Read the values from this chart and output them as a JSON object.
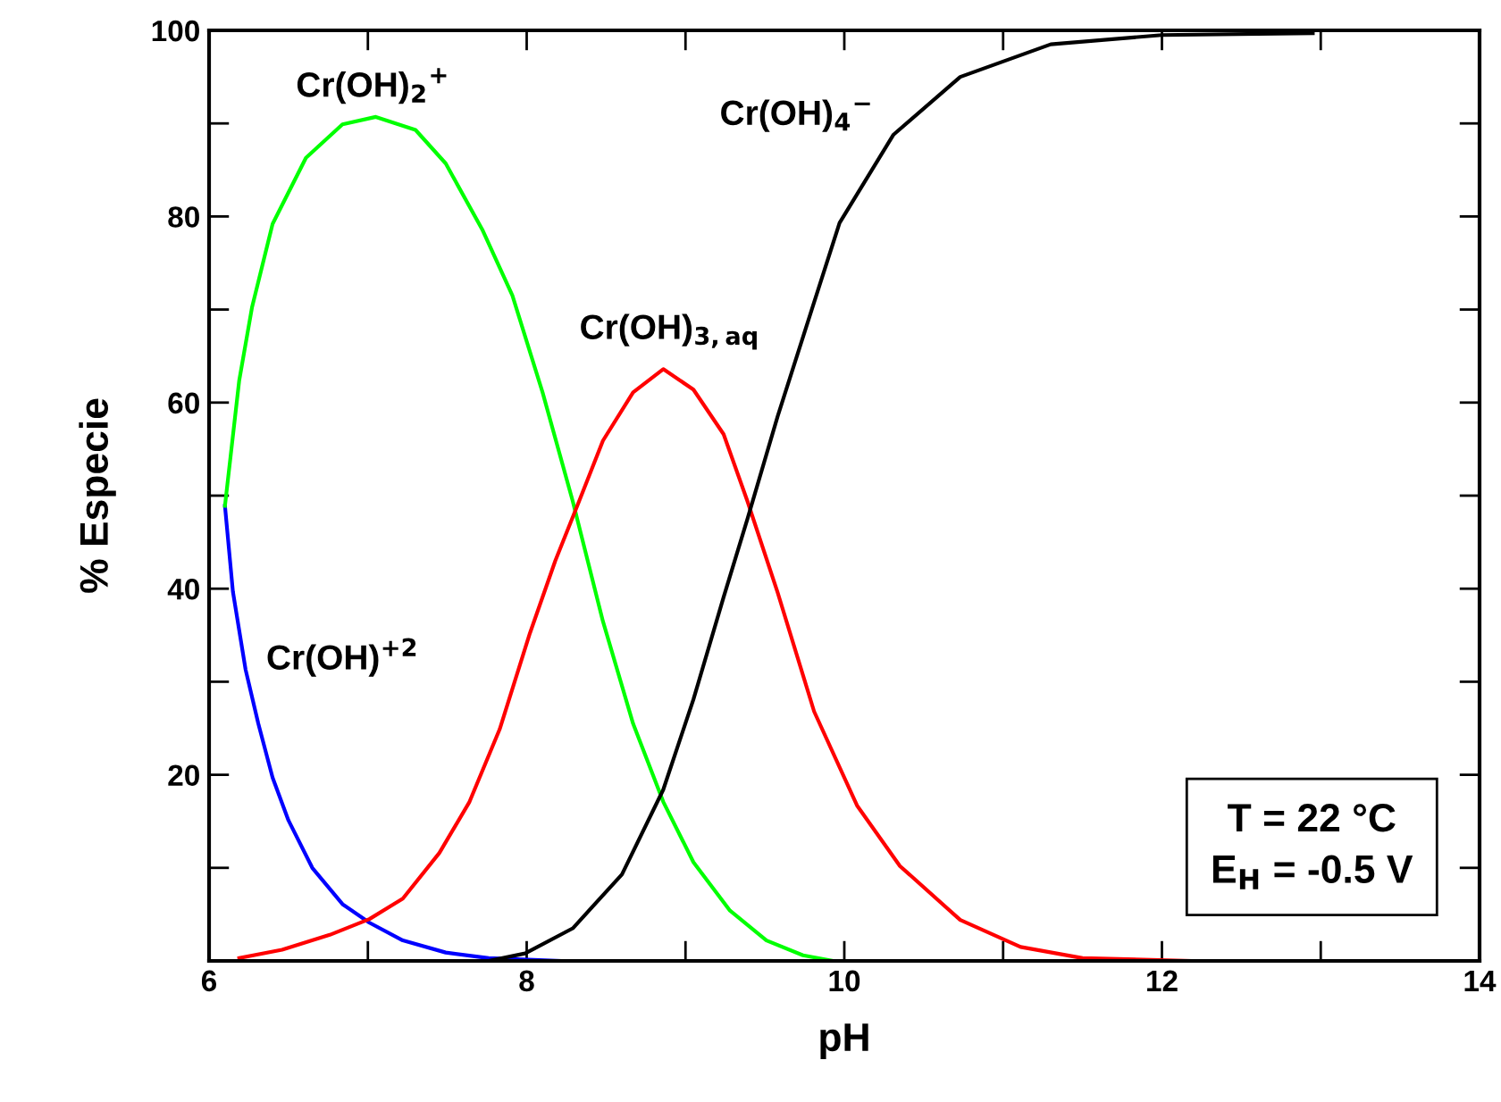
{
  "chart_data": {
    "type": "line",
    "xlabel": "pH",
    "ylabel": "% Especie",
    "xlim": [
      6,
      14
    ],
    "xticks": [
      6,
      {
        "value": 7,
        "label": null
      },
      8,
      {
        "value": 9,
        "label": null
      },
      10,
      {
        "value": 11,
        "label": null
      },
      12,
      {
        "value": 13,
        "label": null
      },
      14
    ],
    "ylim": [
      0,
      100
    ],
    "yticks": [
      {
        "value": 10,
        "label": null
      },
      20,
      {
        "value": 30,
        "label": null
      },
      40,
      {
        "value": 50,
        "label": null
      },
      60,
      {
        "value": 70,
        "label": null
      },
      80,
      {
        "value": 90,
        "label": null
      },
      100
    ],
    "grid": false,
    "legend": false,
    "marker": "none",
    "line_style": "solid",
    "series": [
      {
        "color": "#0000ff",
        "x": [
          6.1,
          6.15,
          6.23,
          6.31,
          6.4,
          6.5,
          6.65,
          6.84,
          7.01,
          7.22,
          7.49,
          7.76,
          8.21
        ],
        "values": [
          48.9,
          39.7,
          31.3,
          25.5,
          19.7,
          15.1,
          10.0,
          6.1,
          4.1,
          2.2,
          0.9,
          0.3,
          0
        ]
      },
      {
        "color": "#00ff00",
        "x": [
          6.1,
          6.19,
          6.27,
          6.4,
          6.61,
          6.84,
          7.05,
          7.3,
          7.49,
          7.72,
          7.91,
          8.1,
          8.29,
          8.48,
          8.67,
          8.86,
          9.05,
          9.28,
          9.51,
          9.74,
          9.93,
          10.2
        ],
        "values": [
          48.9,
          62.4,
          70.2,
          79.2,
          86.3,
          89.9,
          90.7,
          89.3,
          85.7,
          78.6,
          71.5,
          61.1,
          49.4,
          36.5,
          25.5,
          17.1,
          10.6,
          5.4,
          2.2,
          0.6,
          0,
          0
        ]
      },
      {
        "color": "#ff0000",
        "x": [
          6.19,
          6.46,
          6.76,
          7.01,
          7.22,
          7.45,
          7.64,
          7.83,
          8.02,
          8.18,
          8.33,
          8.48,
          8.67,
          8.86,
          9.05,
          9.24,
          9.39,
          9.58,
          9.81,
          10.08,
          10.35,
          10.73,
          11.11,
          11.5,
          12.18
        ],
        "values": [
          0.3,
          1.2,
          2.8,
          4.5,
          6.7,
          11.6,
          17.1,
          24.9,
          35.2,
          43.0,
          49.4,
          55.9,
          61.1,
          63.6,
          61.4,
          56.6,
          49.4,
          39.6,
          26.8,
          16.7,
          10.2,
          4.4,
          1.5,
          0.3,
          0
        ]
      },
      {
        "color": "#000000",
        "x": [
          7.76,
          7.99,
          8.29,
          8.6,
          8.86,
          9.05,
          9.24,
          9.39,
          9.58,
          9.81,
          9.97,
          10.31,
          10.73,
          11.3,
          12.0,
          12.95
        ],
        "values": [
          0,
          0.8,
          3.5,
          9.3,
          18.4,
          28.1,
          39.1,
          47.5,
          58.5,
          70.8,
          79.3,
          88.8,
          95.0,
          98.5,
          99.5,
          99.7
        ]
      }
    ],
    "annotations": [
      "Cr(OH)$_{2}$$^{+}$",
      "Cr(OH)$_{4}$$^{−}$",
      "Cr(OH)$_{3,aq}$",
      "Cr(OH)$^{+2}$",
      "T = 22 °C",
      "E$_{H}$ = -0.5 V"
    ]
  }
}
